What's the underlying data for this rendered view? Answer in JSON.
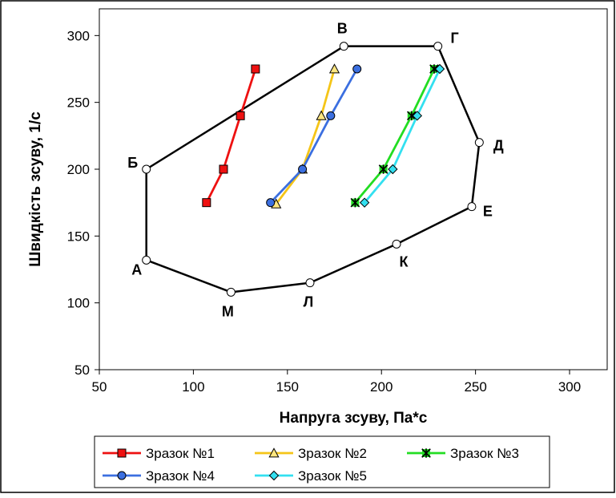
{
  "chart_data": {
    "type": "scatter",
    "title": "",
    "xlabel": "Напруга зсуву, Па*с",
    "ylabel": "Швидкість зсуву, 1/с",
    "xlim": [
      50,
      320
    ],
    "ylim": [
      50,
      320
    ],
    "x_ticks": [
      50,
      100,
      150,
      200,
      250,
      300
    ],
    "y_ticks": [
      50,
      100,
      150,
      200,
      250,
      300
    ],
    "x_tick_labels": [
      "50",
      "100",
      "150",
      "200",
      "250",
      "300"
    ],
    "y_tick_labels": [
      "50",
      "100",
      "150",
      "200",
      "250",
      "300"
    ],
    "grid": false,
    "legend_position": "bottom",
    "boundary": {
      "color": "#000000",
      "points": [
        {
          "label": "А",
          "x": 75,
          "y": 132
        },
        {
          "label": "Б",
          "x": 75,
          "y": 200
        },
        {
          "label": "В",
          "x": 180,
          "y": 292
        },
        {
          "label": "Г",
          "x": 230,
          "y": 292
        },
        {
          "label": "Д",
          "x": 252,
          "y": 220
        },
        {
          "label": "Е",
          "x": 248,
          "y": 172
        },
        {
          "label": "К",
          "x": 208,
          "y": 144
        },
        {
          "label": "Л",
          "x": 162,
          "y": 115
        },
        {
          "label": "М",
          "x": 120,
          "y": 108
        }
      ]
    },
    "series": [
      {
        "name": "Зразок №1",
        "color": "#ee1111",
        "marker": "square",
        "marker_fill": "#ee1111",
        "x": [
          107,
          116,
          125,
          133
        ],
        "y": [
          175,
          200,
          240,
          275
        ]
      },
      {
        "name": "Зразок №2",
        "color": "#f5c518",
        "marker": "triangle",
        "marker_fill": "#ffe680",
        "x": [
          144,
          158,
          168,
          175
        ],
        "y": [
          174,
          200,
          240,
          275
        ]
      },
      {
        "name": "Зразок №3",
        "color": "#22dd22",
        "marker": "asterisk",
        "marker_fill": "#22dd22",
        "x": [
          186,
          201,
          216,
          228
        ],
        "y": [
          175,
          200,
          240,
          275
        ]
      },
      {
        "name": "Зразок №4",
        "color": "#3b6fe0",
        "marker": "circle",
        "marker_fill": "#3b6fe0",
        "x": [
          141,
          158,
          173,
          187
        ],
        "y": [
          175,
          200,
          240,
          275
        ]
      },
      {
        "name": "Зразок №5",
        "color": "#33e0f0",
        "marker": "diamond",
        "marker_fill": "#33e0f0",
        "x": [
          191,
          206,
          219,
          231
        ],
        "y": [
          175,
          200,
          240,
          275
        ]
      }
    ]
  }
}
